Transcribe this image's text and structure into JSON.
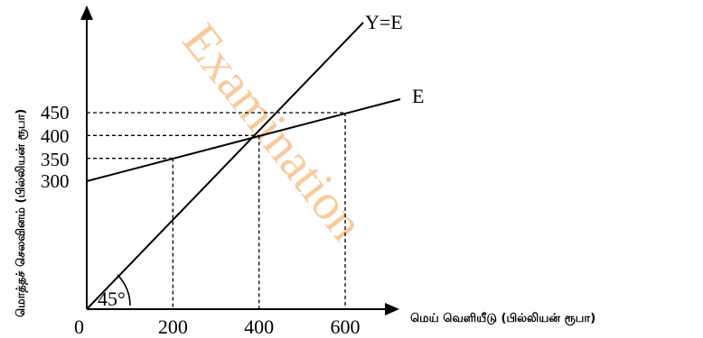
{
  "chart_data": {
    "type": "line",
    "title": "",
    "xlabel": "மெய் வெளியீடு (பில்லியன் ரூபா)",
    "ylabel": "மொத்தச் செலவினம் (பில்லியன் ரூபா)",
    "origin_label": "0",
    "angle_label": "45°",
    "xlim": [
      0,
      700
    ],
    "ylim": [
      0,
      700
    ],
    "x_ticks": [
      200,
      400,
      600
    ],
    "y_ticks": [
      300,
      350,
      400,
      450
    ],
    "series": [
      {
        "name": "Y=E",
        "x": [
          0,
          600
        ],
        "y": [
          0,
          600
        ]
      },
      {
        "name": "E",
        "x": [
          0,
          700
        ],
        "y": [
          300,
          475
        ]
      }
    ],
    "reference_points": [
      {
        "x": 200,
        "y": 350
      },
      {
        "x": 400,
        "y": 400
      },
      {
        "x": 600,
        "y": 450
      }
    ],
    "grid": false,
    "legend": "none",
    "watermark": "Examination",
    "colors": {
      "line": "#000000",
      "watermark": "#f3a04d"
    }
  }
}
